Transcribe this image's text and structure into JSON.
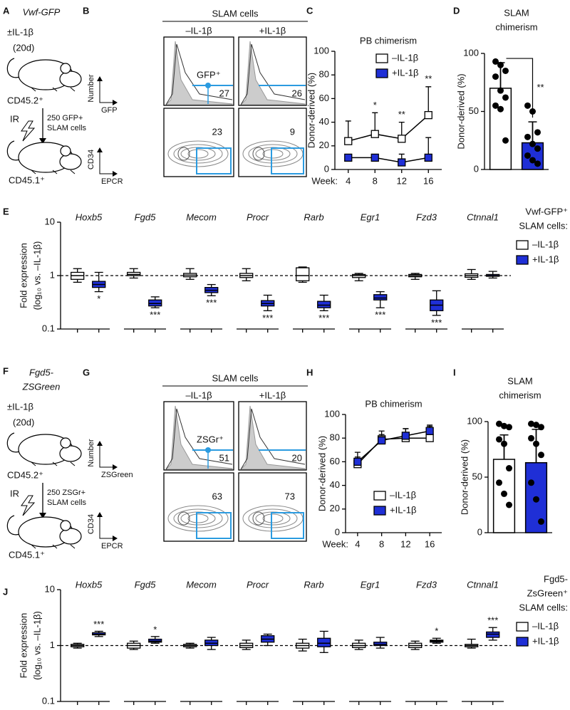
{
  "panel_letters": [
    "A",
    "B",
    "C",
    "D",
    "E",
    "F",
    "G",
    "H",
    "I",
    "J"
  ],
  "schematics": [
    {
      "strain": [
        "Vwf-GFP"
      ],
      "treatment": "±IL-1β",
      "duration": "(20d)",
      "donor": "CD45.2⁺",
      "transplant": [
        "250 GFP+",
        "SLAM cells"
      ],
      "irradiation": "IR",
      "recipient": "CD45.1⁺"
    },
    {
      "strain": [
        "Fgd5-",
        "ZSGreen"
      ],
      "treatment": "±IL-1β",
      "duration": "(20d)",
      "donor": "CD45.2⁺",
      "transplant": [
        "250 ZSGr+",
        "SLAM cells"
      ],
      "irradiation": "IR",
      "recipient": "CD45.1⁺"
    }
  ],
  "flow": [
    {
      "header": "SLAM cells",
      "columns": [
        "–IL-1β",
        "+IL-1β"
      ],
      "hist_y": "Number",
      "hist_x": "GFP",
      "gate": "GFP⁺",
      "hist_percents": [
        27,
        26
      ],
      "dot_y": "CD34",
      "dot_x": "EPCR",
      "dot_percents": [
        23,
        9
      ]
    },
    {
      "header": "SLAM cells",
      "columns": [
        "–IL-1β",
        "+IL-1β"
      ],
      "hist_y": "Number",
      "hist_x": "ZSGreen",
      "gate": "ZSGr⁺",
      "hist_percents": [
        51,
        20
      ],
      "dot_y": "CD34",
      "dot_x": "EPCR",
      "dot_percents": [
        63,
        73
      ]
    }
  ],
  "chart_data": [
    {
      "type": "line",
      "title": "PB chimerism",
      "ylabel": "Donor-derived (%)",
      "xlabel": "Week:",
      "x": [
        4,
        8,
        12,
        16
      ],
      "xlim": [
        2,
        18
      ],
      "xticks": [
        4,
        8,
        12,
        16
      ],
      "ylim": [
        0,
        100
      ],
      "yticks": [
        0,
        20,
        40,
        60,
        80,
        100
      ],
      "legend": "upper right",
      "series": [
        {
          "name": "–IL-1β",
          "color": "#ffffff",
          "values": [
            24,
            30,
            26,
            46
          ],
          "errors": [
            17,
            18,
            14,
            24
          ],
          "labels": [
            null,
            "*",
            "**",
            "**"
          ]
        },
        {
          "name": "+IL-1β",
          "color": "#1f2fd6",
          "values": [
            10,
            10,
            6,
            10
          ],
          "errors": [
            0,
            0,
            7,
            17
          ]
        }
      ]
    },
    {
      "type": "bar",
      "title": [
        "SLAM",
        "chimerism"
      ],
      "ylabel": "Donor-derived (%)",
      "categories": [
        null,
        null
      ],
      "values": [
        70,
        23
      ],
      "errors": [
        22,
        18
      ],
      "colors": [
        "#ffffff",
        "#1f2fd6"
      ],
      "points": [
        [
          93,
          90,
          85,
          80,
          68,
          62,
          55,
          52,
          25
        ],
        [
          55,
          50,
          32,
          28,
          22,
          18,
          12,
          8,
          5
        ]
      ],
      "ylim": [
        0,
        100
      ],
      "yticks": [
        0,
        50,
        100
      ],
      "annotation": "**"
    },
    {
      "type": "box",
      "ylabel": [
        "Fold expression",
        "(log₁₀ vs. –IL-1β)"
      ],
      "log": true,
      "ylim": [
        0.1,
        10
      ],
      "yticks": [
        0.1,
        1,
        10
      ],
      "reference_line": 1,
      "legend": "right",
      "legend_title": [
        "Vwf-GFP⁺",
        "SLAM cells:"
      ],
      "categories": [
        "Hoxb5",
        "Fgd5",
        "Mecom",
        "Procr",
        "Rarb",
        "Egr1",
        "Fzd3",
        "Ctnnal1"
      ],
      "series": [
        {
          "name": "–IL-1β",
          "color": "#ffffff",
          "boxes": [
            {
              "min": 0.75,
              "q1": 0.85,
              "median": 1.0,
              "q3": 1.15,
              "max": 1.35
            },
            {
              "min": 0.9,
              "q1": 1.0,
              "median": 1.05,
              "q3": 1.15,
              "max": 1.35
            },
            {
              "min": 0.85,
              "q1": 0.95,
              "median": 1.02,
              "q3": 1.1,
              "max": 1.35
            },
            {
              "min": 0.8,
              "q1": 0.92,
              "median": 1.0,
              "q3": 1.1,
              "max": 1.35
            },
            {
              "min": 0.75,
              "q1": 0.8,
              "median": 1.0,
              "q3": 1.4,
              "max": 1.45
            },
            {
              "min": 0.8,
              "q1": 0.92,
              "median": 1.0,
              "q3": 1.05,
              "max": 1.1
            },
            {
              "min": 0.85,
              "q1": 0.95,
              "median": 1.0,
              "q3": 1.05,
              "max": 1.1
            },
            {
              "min": 0.85,
              "q1": 0.93,
              "median": 1.0,
              "q3": 1.08,
              "max": 1.3
            }
          ]
        },
        {
          "name": "+IL-1β",
          "color": "#1f2fd6",
          "labels": [
            "*",
            "***",
            "***",
            "***",
            "***",
            "***",
            "***",
            null
          ],
          "boxes": [
            {
              "min": 0.5,
              "q1": 0.6,
              "median": 0.68,
              "q3": 0.78,
              "max": 1.15
            },
            {
              "min": 0.25,
              "q1": 0.27,
              "median": 0.3,
              "q3": 0.35,
              "max": 0.4
            },
            {
              "min": 0.42,
              "q1": 0.48,
              "median": 0.53,
              "q3": 0.6,
              "max": 0.68
            },
            {
              "min": 0.22,
              "q1": 0.27,
              "median": 0.3,
              "q3": 0.34,
              "max": 0.43
            },
            {
              "min": 0.22,
              "q1": 0.25,
              "median": 0.28,
              "q3": 0.33,
              "max": 0.43
            },
            {
              "min": 0.25,
              "q1": 0.35,
              "median": 0.38,
              "q3": 0.44,
              "max": 0.5
            },
            {
              "min": 0.18,
              "q1": 0.22,
              "median": 0.28,
              "q3": 0.35,
              "max": 0.52
            },
            {
              "min": 0.9,
              "q1": 0.97,
              "median": 1.0,
              "q3": 1.05,
              "max": 1.2
            }
          ]
        }
      ]
    },
    {
      "type": "line",
      "title": "PB chimerism",
      "ylabel": "Donor-derived (%)",
      "xlabel": "Week:",
      "x": [
        4,
        8,
        12,
        16
      ],
      "xlim": [
        2,
        18
      ],
      "xticks": [
        4,
        8,
        12,
        16
      ],
      "ylim": [
        0,
        100
      ],
      "yticks": [
        0,
        20,
        40,
        60,
        80,
        100
      ],
      "legend": "lower right",
      "series": [
        {
          "name": "–IL-1β",
          "color": "#ffffff",
          "values": [
            58,
            79,
            80,
            80
          ],
          "errors": [
            6,
            7,
            8,
            10
          ]
        },
        {
          "name": "+IL-1β",
          "color": "#1f2fd6",
          "values": [
            60,
            78,
            82,
            86
          ],
          "errors": [
            8,
            5,
            6,
            5
          ]
        }
      ]
    },
    {
      "type": "bar",
      "title": [
        "SLAM",
        "chimerism"
      ],
      "ylabel": "Donor-derived (%)",
      "categories": [
        null,
        null
      ],
      "values": [
        66,
        63
      ],
      "errors": [
        22,
        30
      ],
      "colors": [
        "#ffffff",
        "#1f2fd6"
      ],
      "points": [
        [
          98,
          96,
          95,
          84,
          80,
          58,
          45,
          35,
          25
        ],
        [
          98,
          97,
          95,
          85,
          80,
          70,
          45,
          30,
          10
        ]
      ],
      "ylim": [
        0,
        100
      ],
      "yticks": [
        0,
        50,
        100
      ]
    },
    {
      "type": "box",
      "ylabel": [
        "Fold expression",
        "(log₁₀ vs. –IL-1β)"
      ],
      "log": true,
      "ylim": [
        0.1,
        10
      ],
      "yticks": [
        0.1,
        1,
        10
      ],
      "reference_line": 1,
      "legend": "right",
      "legend_title": [
        "Fgd5-",
        "ZsGreen⁺",
        "SLAM cells:"
      ],
      "categories": [
        "Hoxb5",
        "Fgd5",
        "Mecom",
        "Procr",
        "Rarb",
        "Egr1",
        "Fzd3",
        "Ctnnal1"
      ],
      "series": [
        {
          "name": "–IL-1β",
          "color": "#ffffff",
          "boxes": [
            {
              "min": 0.9,
              "q1": 0.95,
              "median": 1.0,
              "q3": 1.05,
              "max": 1.1
            },
            {
              "min": 0.85,
              "q1": 0.9,
              "median": 1.0,
              "q3": 1.1,
              "max": 1.2
            },
            {
              "min": 0.9,
              "q1": 0.95,
              "median": 1.0,
              "q3": 1.05,
              "max": 1.1
            },
            {
              "min": 0.85,
              "q1": 0.92,
              "median": 1.0,
              "q3": 1.1,
              "max": 1.25
            },
            {
              "min": 0.8,
              "q1": 0.9,
              "median": 1.0,
              "q3": 1.1,
              "max": 1.3
            },
            {
              "min": 0.85,
              "q1": 0.92,
              "median": 1.0,
              "q3": 1.1,
              "max": 1.25
            },
            {
              "min": 0.85,
              "q1": 0.92,
              "median": 1.0,
              "q3": 1.1,
              "max": 1.2
            },
            {
              "min": 0.9,
              "q1": 0.95,
              "median": 1.0,
              "q3": 1.05,
              "max": 1.3
            }
          ]
        },
        {
          "name": "+IL-1β",
          "color": "#1f2fd6",
          "labels": [
            "***",
            "*",
            null,
            null,
            null,
            null,
            "*",
            "***"
          ],
          "boxes": [
            {
              "min": 1.45,
              "q1": 1.55,
              "median": 1.6,
              "q3": 1.7,
              "max": 1.8
            },
            {
              "min": 1.1,
              "q1": 1.15,
              "median": 1.2,
              "q3": 1.3,
              "max": 1.45
            },
            {
              "min": 0.85,
              "q1": 1.0,
              "median": 1.1,
              "q3": 1.25,
              "max": 1.4
            },
            {
              "min": 1.0,
              "q1": 1.15,
              "median": 1.3,
              "q3": 1.5,
              "max": 1.6
            },
            {
              "min": 0.75,
              "q1": 0.95,
              "median": 1.1,
              "q3": 1.35,
              "max": 1.8
            },
            {
              "min": 0.9,
              "q1": 1.0,
              "median": 1.05,
              "q3": 1.15,
              "max": 1.4
            },
            {
              "min": 1.1,
              "q1": 1.15,
              "median": 1.2,
              "q3": 1.25,
              "max": 1.35
            },
            {
              "min": 1.25,
              "q1": 1.4,
              "median": 1.6,
              "q3": 1.75,
              "max": 2.1
            }
          ]
        }
      ]
    }
  ]
}
